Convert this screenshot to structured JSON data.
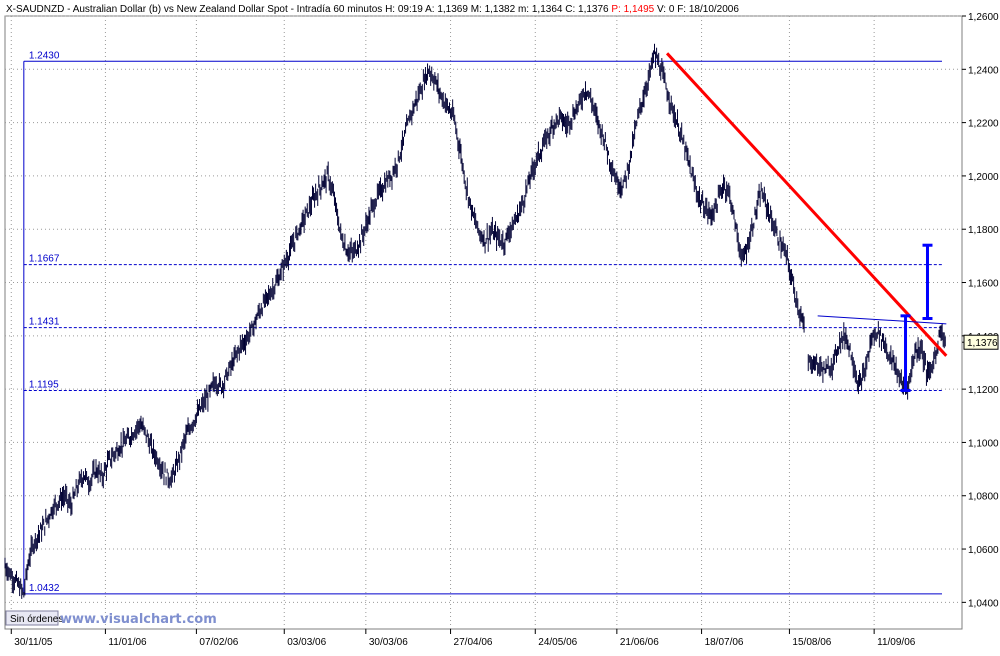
{
  "header": {
    "symbol": "X-SAUDNZD",
    "description": "Australian Dollar (b) vs New Zealand Dollar Spot",
    "timeframe": "Intradía 60 minutos",
    "quote": [
      {
        "key": "H:",
        "value": "09:19"
      },
      {
        "key": "A:",
        "value": "1,1369"
      },
      {
        "key": "M:",
        "value": "1,1382"
      },
      {
        "key": "m:",
        "value": "1,1364"
      },
      {
        "key": "C:",
        "value": "1,1376"
      },
      {
        "key": "P:",
        "value": "1,1495",
        "color": "#ff0000"
      },
      {
        "key": "V:",
        "value": "0"
      },
      {
        "key": "F:",
        "value": "18/10/2006"
      }
    ]
  },
  "footer": {
    "orders_button": "Sin órdenes",
    "watermark": "www.visualchart.com"
  },
  "colors": {
    "price": "#000033",
    "level": "#0000cc",
    "trend": "#ff0000",
    "marker": "#0000ff",
    "grid": "#9a9a9a",
    "badge": "#ffffe0"
  },
  "chart_data": {
    "type": "line",
    "style": "ohlc-bars",
    "x_ticks": [
      "30/11/05",
      "11/01/06",
      "07/02/06",
      "03/03/06",
      "30/03/06",
      "27/04/06",
      "24/05/06",
      "21/06/06",
      "18/07/06",
      "15/08/06",
      "11/09/06"
    ],
    "y_ticks": [
      "1,0400",
      "1,0600",
      "1,0800",
      "1,1000",
      "1,1200",
      "1,1400",
      "1,1600",
      "1,1800",
      "1,2000",
      "1,2200",
      "1,2400",
      "1,2600"
    ],
    "ylim": [
      1.03,
      1.26
    ],
    "last_price": 1.1376,
    "last_price_label": "1,1376",
    "grid": true,
    "levels": [
      {
        "value": 1.243,
        "label": "1.2430",
        "style": "solid"
      },
      {
        "value": 1.1667,
        "label": "1.1667",
        "style": "dashed"
      },
      {
        "value": 1.1431,
        "label": "1.1431",
        "style": "dashed"
      },
      {
        "value": 1.1195,
        "label": "1.1195",
        "style": "dashed"
      },
      {
        "value": 1.0432,
        "label": "1.0432",
        "style": "solid"
      }
    ],
    "series": [
      {
        "x": [
          0,
          2,
          4,
          5,
          6,
          7,
          8,
          9,
          10,
          11,
          13,
          15,
          17,
          19,
          21,
          23,
          25,
          27,
          29,
          31,
          33,
          35,
          37,
          39,
          41,
          43,
          45,
          47,
          49,
          51,
          53,
          55,
          57,
          59,
          61,
          63,
          65,
          67,
          69,
          71,
          73,
          75,
          77,
          79,
          81,
          83,
          85,
          87,
          89,
          91,
          93,
          95,
          97,
          99,
          101,
          103,
          105,
          107,
          109,
          111,
          113,
          115,
          117,
          119,
          121,
          123,
          125,
          127,
          129,
          131,
          133,
          135,
          137,
          139,
          141,
          143,
          145,
          147,
          149,
          151,
          153,
          155,
          157,
          159,
          161,
          163,
          165,
          167,
          169,
          171,
          173,
          175,
          177,
          179,
          181,
          183,
          185,
          187,
          189,
          191,
          193,
          195,
          197,
          199,
          201,
          203,
          205,
          207,
          209,
          211,
          213,
          215,
          217,
          219,
          221,
          223,
          225,
          227,
          229,
          231,
          233,
          235,
          237,
          239,
          241,
          243,
          245,
          247,
          249,
          251,
          253,
          255
        ],
        "values": [
          1.054,
          1.05,
          1.047,
          1.045,
          1.043,
          1.052,
          1.058,
          1.062,
          1.064,
          1.066,
          1.07,
          1.075,
          1.078,
          1.08,
          1.076,
          1.083,
          1.088,
          1.085,
          1.09,
          1.087,
          1.093,
          1.096,
          1.099,
          1.101,
          1.104,
          1.107,
          1.103,
          1.097,
          1.093,
          1.088,
          1.086,
          1.092,
          1.1,
          1.106,
          1.11,
          1.114,
          1.118,
          1.123,
          1.121,
          1.126,
          1.131,
          1.136,
          1.139,
          1.143,
          1.149,
          1.153,
          1.157,
          1.161,
          1.167,
          1.172,
          1.178,
          1.183,
          1.188,
          1.193,
          1.197,
          1.2,
          1.191,
          1.178,
          1.172,
          1.171,
          1.175,
          1.181,
          1.188,
          1.193,
          1.197,
          1.2,
          1.205,
          1.213,
          1.222,
          1.228,
          1.234,
          1.24,
          1.236,
          1.23,
          1.226,
          1.222,
          1.21,
          1.196,
          1.186,
          1.179,
          1.176,
          1.179,
          1.177,
          1.175,
          1.18,
          1.184,
          1.19,
          1.198,
          1.205,
          1.21,
          1.215,
          1.22,
          1.222,
          1.219,
          1.223,
          1.227,
          1.233,
          1.228,
          1.22,
          1.214,
          1.205,
          1.198,
          1.196,
          1.205,
          1.218,
          1.228,
          1.236,
          1.246,
          1.24,
          1.232,
          1.224,
          1.217,
          1.209,
          1.2,
          1.192,
          1.188,
          1.185,
          1.19,
          1.197,
          1.193,
          1.18,
          1.168,
          1.175,
          1.185,
          1.194,
          1.188,
          1.181,
          1.175,
          1.17,
          1.16,
          1.15,
          1.141
        ]
      },
      {
        "x": [
          256,
          258,
          260,
          262,
          264,
          266,
          268,
          270,
          272,
          274,
          276,
          278,
          280,
          282,
          284,
          286,
          288,
          290,
          292,
          294,
          296,
          298,
          300
        ],
        "values": [
          1.13,
          1.13,
          1.128,
          1.127,
          1.13,
          1.138,
          1.14,
          1.132,
          1.121,
          1.126,
          1.138,
          1.142,
          1.138,
          1.132,
          1.128,
          1.121,
          1.122,
          1.134,
          1.136,
          1.125,
          1.13,
          1.142,
          1.137
        ]
      }
    ],
    "trend_line": {
      "from": {
        "x": 211,
        "y": 1.246
      },
      "to": {
        "x": 300,
        "y": 1.1325
      }
    },
    "channel_line": {
      "from": {
        "x": 259,
        "y": 1.1475
      },
      "to": {
        "x": 300,
        "y": 1.1445
      }
    },
    "vertical_markers": [
      {
        "x": 287,
        "low": 1.1195,
        "high": 1.1475
      },
      {
        "x": 294,
        "low": 1.1465,
        "high": 1.174
      }
    ],
    "x_tick_positions": [
      2,
      32,
      61,
      89,
      115,
      142,
      169,
      195,
      222,
      250,
      277
    ],
    "x_range": [
      0,
      305
    ]
  }
}
